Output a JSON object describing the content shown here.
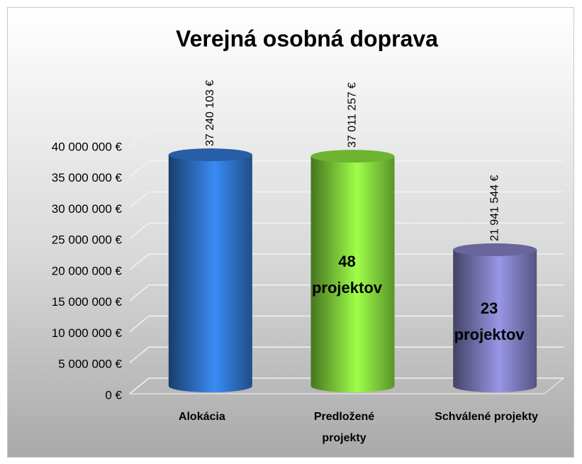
{
  "chart_data": {
    "type": "bar3d",
    "title": "Verejná osobná doprava",
    "categories": [
      "Alokácia",
      "Predložené projekty",
      "Schválené projekty"
    ],
    "values": [
      37240103,
      37011257,
      21941544
    ],
    "value_labels": [
      "37 240 103 €",
      "37 011 257 €",
      "21 941 544 €"
    ],
    "colors": [
      "#2e6fc4",
      "#7fd43a",
      "#7a78b8"
    ],
    "annotations": [
      {
        "index": 1,
        "text": "48 projektov"
      },
      {
        "index": 2,
        "text": "23 projektov"
      }
    ],
    "ylim": [
      0,
      40000000
    ],
    "yticks": [
      {
        "value": 0,
        "label": "0 €"
      },
      {
        "value": 5000000,
        "label": "5 000 000 €"
      },
      {
        "value": 10000000,
        "label": "10 000 000 €"
      },
      {
        "value": 15000000,
        "label": "15 000 000 €"
      },
      {
        "value": 20000000,
        "label": "20 000 000 €"
      },
      {
        "value": 25000000,
        "label": "25 000 000 €"
      },
      {
        "value": 30000000,
        "label": "30 000 000 €"
      },
      {
        "value": 35000000,
        "label": "35 000 000 €"
      },
      {
        "value": 40000000,
        "label": "40 000 000 €"
      }
    ],
    "grid": true
  }
}
